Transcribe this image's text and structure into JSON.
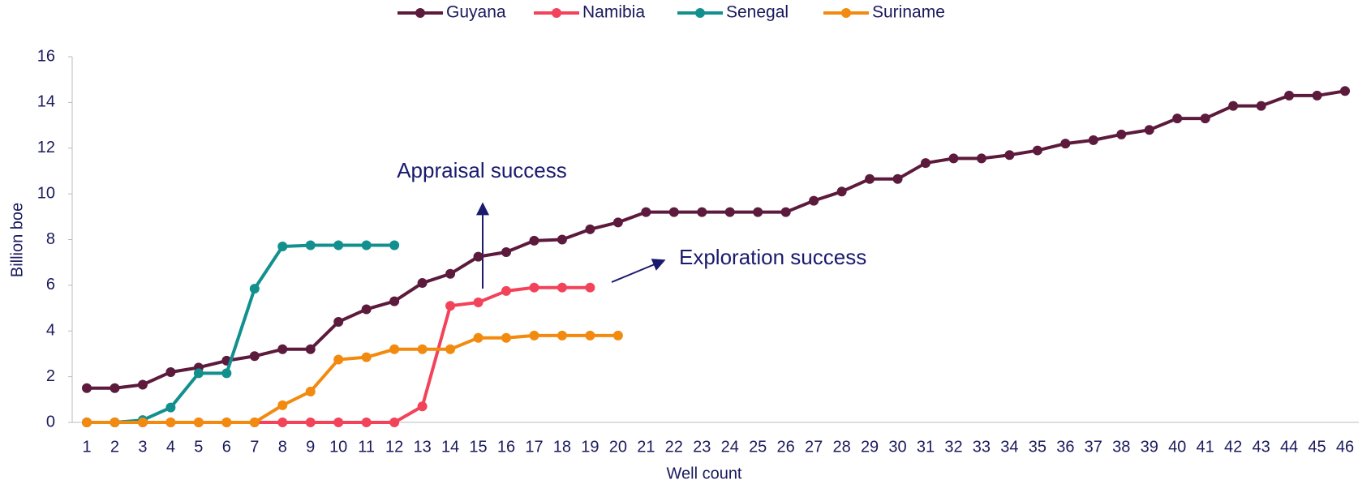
{
  "chart_data": {
    "type": "line",
    "categories": [
      1,
      2,
      3,
      4,
      5,
      6,
      7,
      8,
      9,
      10,
      11,
      12,
      13,
      14,
      15,
      16,
      17,
      18,
      19,
      20,
      21,
      22,
      23,
      24,
      25,
      26,
      27,
      28,
      29,
      30,
      31,
      32,
      33,
      34,
      35,
      36,
      37,
      38,
      39,
      40,
      41,
      42,
      43,
      44,
      45,
      46
    ],
    "series": [
      {
        "name": "Guyana",
        "color": "#5c1a3c",
        "values": [
          1.5,
          1.5,
          1.65,
          2.2,
          2.4,
          2.7,
          2.9,
          3.2,
          3.2,
          4.4,
          4.95,
          5.3,
          6.1,
          6.5,
          7.25,
          7.45,
          7.95,
          8.0,
          8.45,
          8.75,
          9.2,
          9.2,
          9.2,
          9.2,
          9.2,
          9.2,
          9.7,
          10.1,
          10.65,
          10.65,
          11.35,
          11.55,
          11.55,
          11.7,
          11.9,
          12.2,
          12.35,
          12.6,
          12.8,
          13.3,
          13.3,
          13.85,
          13.85,
          14.3,
          14.3,
          14.5
        ]
      },
      {
        "name": "Namibia",
        "color": "#f2435a",
        "values": [
          0,
          0,
          0,
          0,
          0,
          0,
          0,
          0,
          0,
          0,
          0,
          0,
          0.7,
          5.1,
          5.25,
          5.75,
          5.9,
          5.9,
          5.9,
          null,
          null,
          null,
          null,
          null,
          null,
          null,
          null,
          null,
          null,
          null,
          null,
          null,
          null,
          null,
          null,
          null,
          null,
          null,
          null,
          null,
          null,
          null,
          null,
          null,
          null,
          null
        ]
      },
      {
        "name": "Senegal",
        "color": "#12908e",
        "values": [
          0,
          0,
          0.1,
          0.65,
          2.15,
          2.15,
          5.85,
          7.7,
          7.75,
          7.75,
          7.75,
          7.75,
          null,
          null,
          null,
          null,
          null,
          null,
          null,
          null,
          null,
          null,
          null,
          null,
          null,
          null,
          null,
          null,
          null,
          null,
          null,
          null,
          null,
          null,
          null,
          null,
          null,
          null,
          null,
          null,
          null,
          null,
          null,
          null,
          null,
          null
        ]
      },
      {
        "name": "Suriname",
        "color": "#f28a0f",
        "values": [
          0,
          0,
          0,
          0,
          0,
          0,
          0,
          0.75,
          1.35,
          2.75,
          2.85,
          3.2,
          3.2,
          3.2,
          3.7,
          3.7,
          3.8,
          3.8,
          3.8,
          3.8,
          null,
          null,
          null,
          null,
          null,
          null,
          null,
          null,
          null,
          null,
          null,
          null,
          null,
          null,
          null,
          null,
          null,
          null,
          null,
          null,
          null,
          null,
          null,
          null,
          null,
          null
        ]
      }
    ],
    "ylim": [
      0,
      16
    ],
    "yticks": [
      0,
      2,
      4,
      6,
      8,
      10,
      12,
      14,
      16
    ],
    "xlabel": "Well count",
    "ylabel": "Billion boe",
    "annotations": [
      "Appraisal success",
      "Exploration success"
    ],
    "legend": "top"
  }
}
